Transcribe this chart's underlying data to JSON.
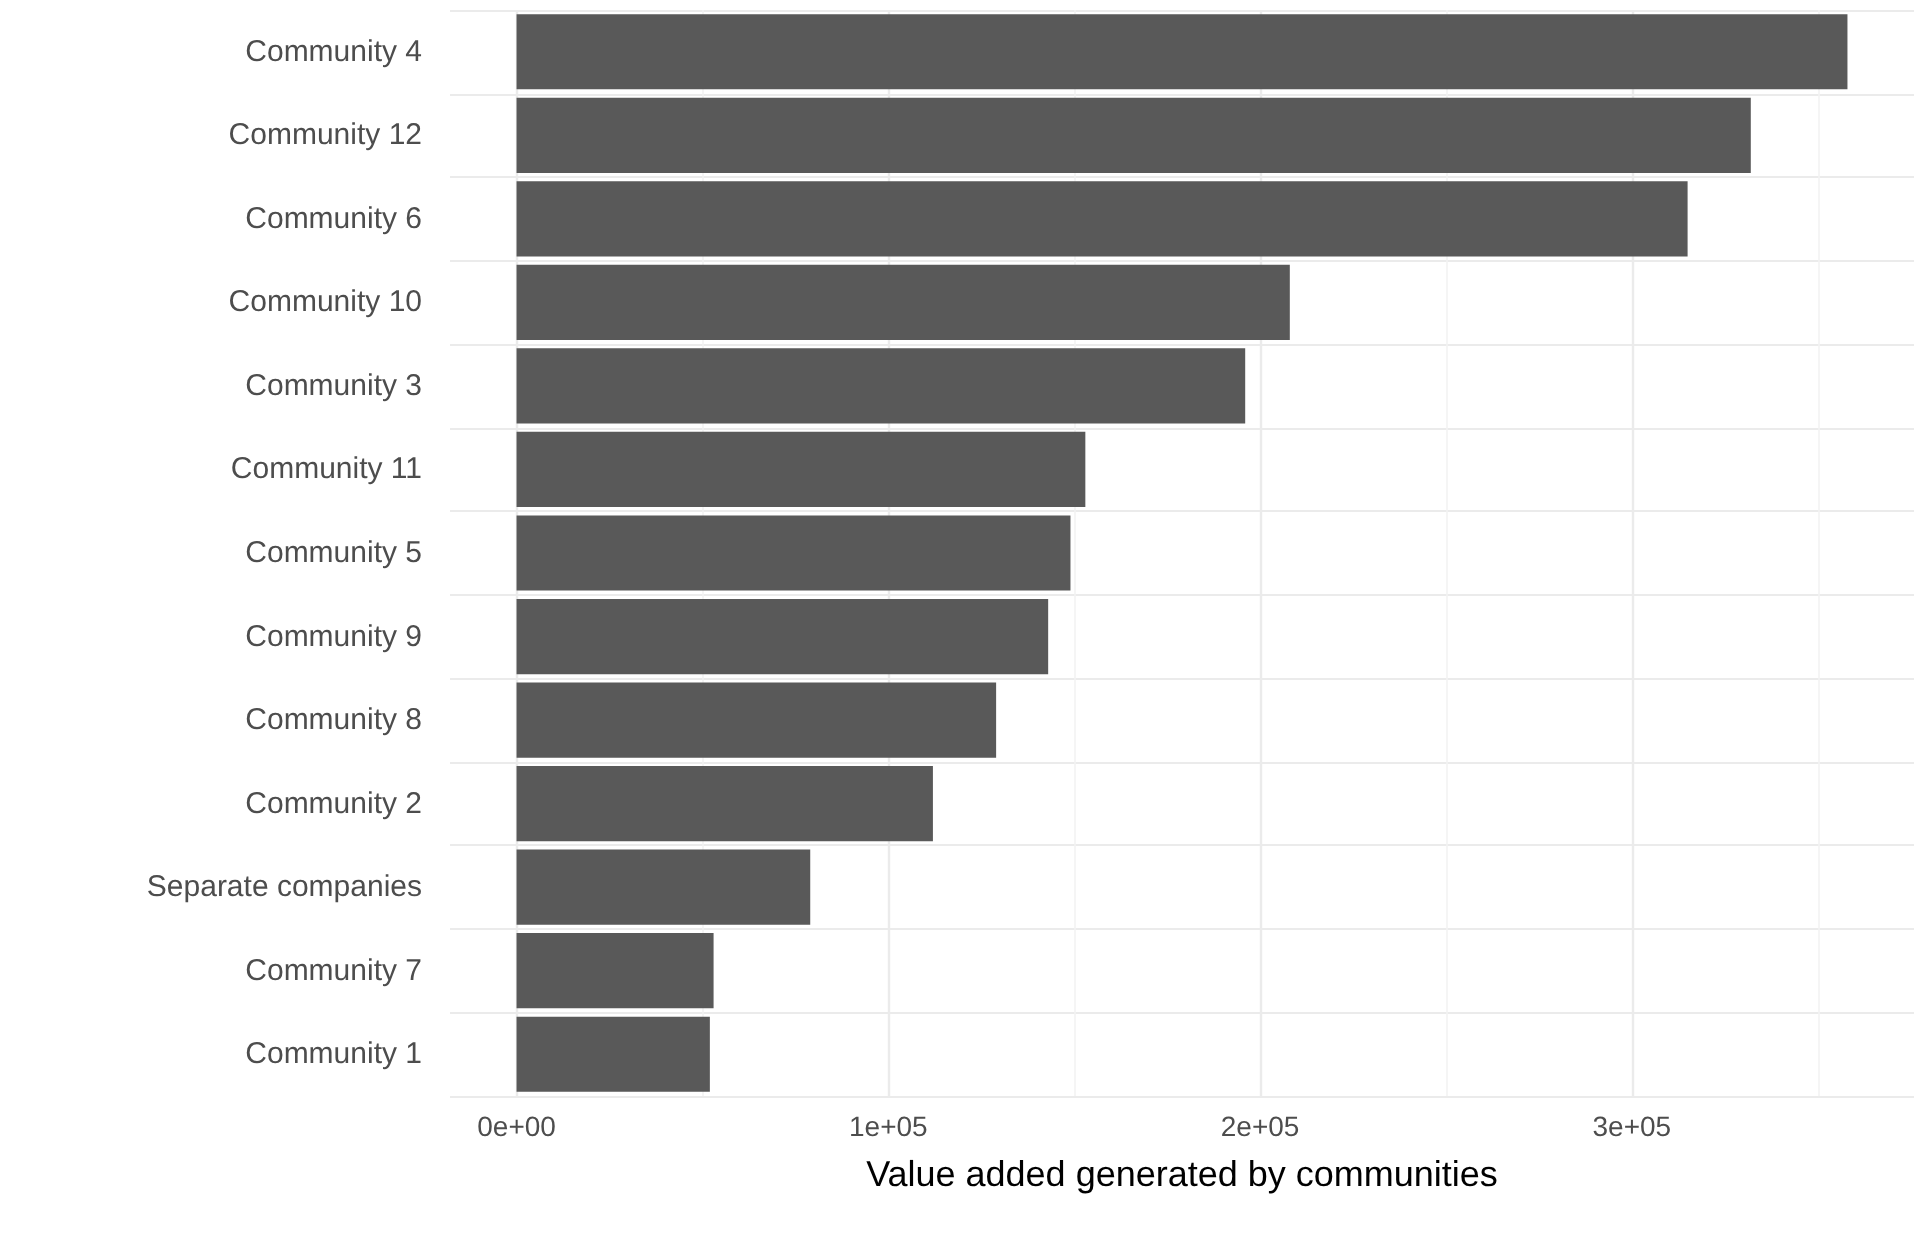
{
  "chart_data": {
    "type": "bar",
    "orientation": "horizontal",
    "xlabel": "Value added generated by communities",
    "categories": [
      "Community 4",
      "Community 12",
      "Community 6",
      "Community 10",
      "Community 3",
      "Community 11",
      "Community 5",
      "Community 9",
      "Community 8",
      "Community 2",
      "Separate companies",
      "Community 7",
      "Community 1"
    ],
    "values": [
      358000,
      332000,
      315000,
      208000,
      196000,
      153000,
      149000,
      143000,
      129000,
      112000,
      79000,
      53000,
      52000
    ],
    "color": "#595959",
    "xlim": [
      -17900,
      375900
    ],
    "xticks": [
      {
        "value": 0,
        "label": "0e+00"
      },
      {
        "value": 100000,
        "label": "1e+05"
      },
      {
        "value": 200000,
        "label": "2e+05"
      },
      {
        "value": 300000,
        "label": "3e+05"
      }
    ],
    "grid": true
  }
}
